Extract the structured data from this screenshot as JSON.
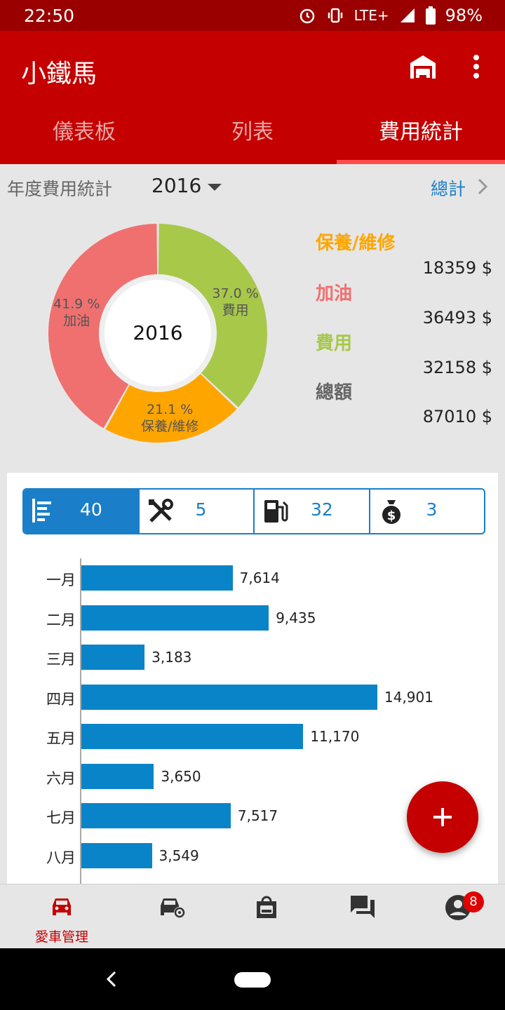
{
  "status": {
    "time": "22:50",
    "network": "LTE+",
    "battery": "98%"
  },
  "appbar": {
    "title": "小鐵馬"
  },
  "tabs": [
    {
      "label": "儀表板"
    },
    {
      "label": "列表"
    },
    {
      "label": "費用統計"
    }
  ],
  "year_row": {
    "label": "年度費用統計",
    "year": "2016",
    "total_link": "總計"
  },
  "donut": {
    "center": "2016",
    "slices": [
      {
        "name": "費用",
        "percent": 37.0,
        "pct_label": "37.0 %",
        "color": "#a8c84a"
      },
      {
        "name": "保養/維修",
        "percent": 21.1,
        "pct_label": "21.1 %",
        "color": "#ffa500"
      },
      {
        "name": "加油",
        "percent": 41.9,
        "pct_label": "41.9 %",
        "color": "#f07070"
      }
    ]
  },
  "legend": [
    {
      "name": "保養/維修",
      "value": "18359 $",
      "color": "#ffa500"
    },
    {
      "name": "加油",
      "value": "36493 $",
      "color": "#f07070"
    },
    {
      "name": "費用",
      "value": "32158 $",
      "color": "#a8c84a"
    },
    {
      "name": "總額",
      "value": "87010 $",
      "color": "#666666"
    }
  ],
  "filters": [
    {
      "icon": "list-icon",
      "count": "40",
      "active": true
    },
    {
      "icon": "tools-icon",
      "count": "5",
      "active": false
    },
    {
      "icon": "fuel-icon",
      "count": "32",
      "active": false
    },
    {
      "icon": "money-bag-icon",
      "count": "3",
      "active": false
    }
  ],
  "chart_data": {
    "type": "bar",
    "orientation": "horizontal",
    "categories": [
      "一月",
      "二月",
      "三月",
      "四月",
      "五月",
      "六月",
      "七月",
      "八月"
    ],
    "values": [
      7614,
      9435,
      3183,
      14901,
      11170,
      3650,
      7517,
      3549
    ],
    "value_labels": [
      "7,614",
      "9,435",
      "3,183",
      "14,901",
      "11,170",
      "3,650",
      "7,517",
      "3,549"
    ],
    "xlim": [
      0,
      17000
    ],
    "color": "#0a84c8"
  },
  "bottom_nav": [
    {
      "icon": "car-icon",
      "label": "愛車管理",
      "active": true
    },
    {
      "icon": "car-settings-icon",
      "label": ""
    },
    {
      "icon": "shop-icon",
      "label": ""
    },
    {
      "icon": "chat-icon",
      "label": ""
    },
    {
      "icon": "account-icon",
      "label": "",
      "badge": "8"
    }
  ]
}
